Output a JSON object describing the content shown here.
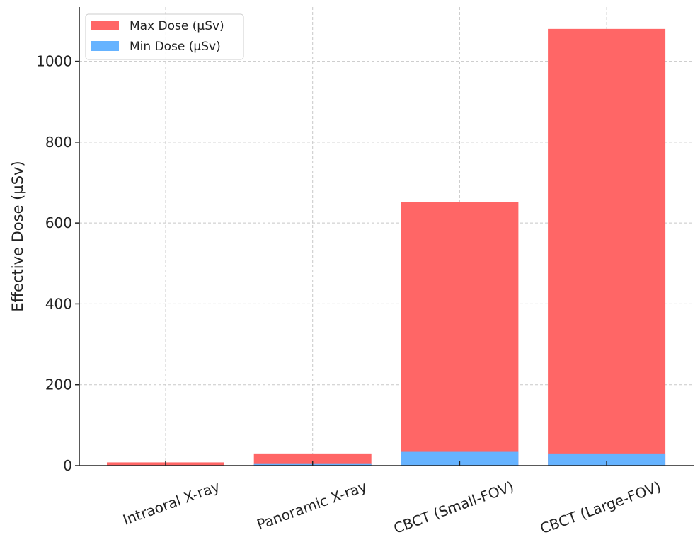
{
  "chart_data": {
    "type": "bar",
    "title": "",
    "xlabel": "",
    "ylabel": "Effective Dose (µSv)",
    "categories": [
      "Intraoral X-ray",
      "Panoramic X-ray",
      "CBCT (Small-FOV)",
      "CBCT (Large-FOV)"
    ],
    "series": [
      {
        "name": "Max Dose (µSv)",
        "values": [
          8,
          30,
          652,
          1080
        ],
        "color": "#ff6666"
      },
      {
        "name": "Min Dose (µSv)",
        "values": [
          1,
          4,
          34,
          30
        ],
        "color": "#66b3ff"
      }
    ],
    "ylim": [
      0,
      1134
    ],
    "yticks": [
      0,
      200,
      400,
      600,
      800,
      1000
    ],
    "grid": true,
    "legend": "top-left"
  }
}
